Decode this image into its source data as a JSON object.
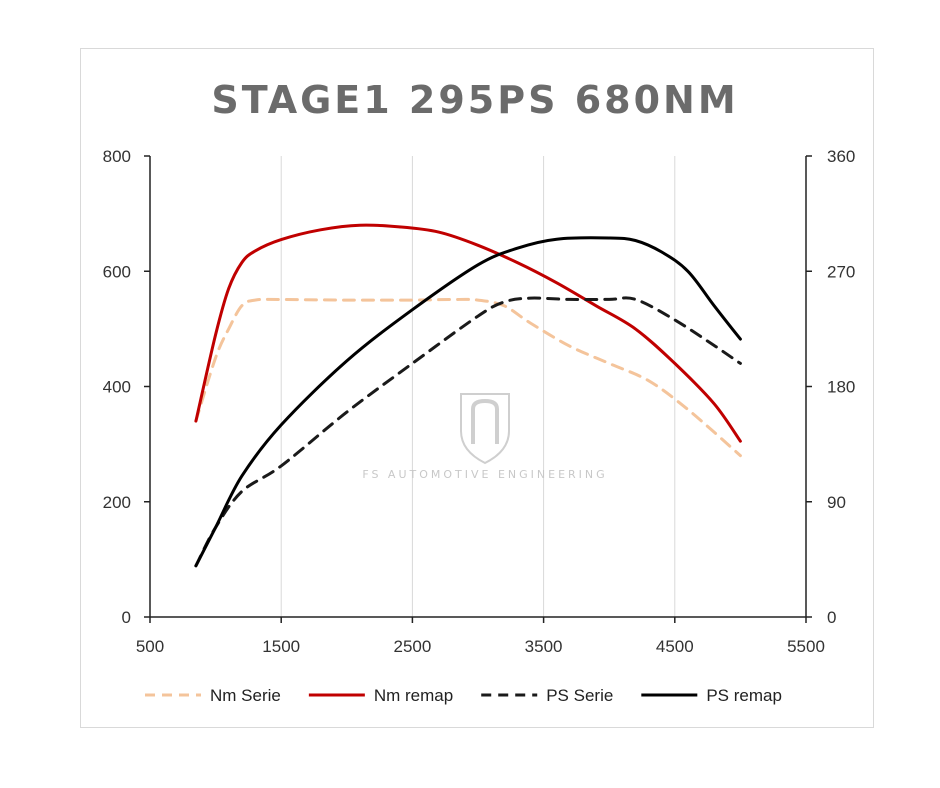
{
  "watermark": {
    "text": "FS AUTOMOTIVE ENGINEERING"
  },
  "chart_data": {
    "type": "line",
    "title": "STAGE1  295PS  680NM",
    "xlabel": "",
    "ylabel": "",
    "xlim": [
      500,
      5500
    ],
    "ylim_left": [
      0,
      800
    ],
    "ylim_right": [
      0,
      360
    ],
    "x_ticks": [
      "500",
      "1500",
      "2500",
      "3500",
      "4500",
      "5500"
    ],
    "y_left_ticks": [
      "0",
      "200",
      "400",
      "600",
      "800"
    ],
    "y_right_ticks": [
      "0",
      "90",
      "180",
      "270",
      "360"
    ],
    "grid": "vertical",
    "legend_position": "bottom",
    "series": [
      {
        "name": "Nm Serie",
        "axis": "left",
        "color": "#f4c49b",
        "dash": "dashed",
        "points": [
          [
            850,
            340
          ],
          [
            1000,
            450
          ],
          [
            1100,
            500
          ],
          [
            1200,
            540
          ],
          [
            1300,
            550
          ],
          [
            1500,
            551
          ],
          [
            2000,
            550
          ],
          [
            2500,
            550
          ],
          [
            2800,
            551
          ],
          [
            3000,
            550
          ],
          [
            3200,
            540
          ],
          [
            3400,
            510
          ],
          [
            3700,
            470
          ],
          [
            4000,
            440
          ],
          [
            4300,
            410
          ],
          [
            4600,
            360
          ],
          [
            5000,
            280
          ]
        ]
      },
      {
        "name": "Nm remap",
        "axis": "left",
        "color": "#c00000",
        "dash": "solid",
        "points": [
          [
            850,
            340
          ],
          [
            1000,
            490
          ],
          [
            1100,
            570
          ],
          [
            1200,
            615
          ],
          [
            1300,
            635
          ],
          [
            1500,
            655
          ],
          [
            1800,
            672
          ],
          [
            2100,
            680
          ],
          [
            2400,
            677
          ],
          [
            2700,
            668
          ],
          [
            3000,
            645
          ],
          [
            3300,
            615
          ],
          [
            3600,
            580
          ],
          [
            3900,
            540
          ],
          [
            4200,
            500
          ],
          [
            4500,
            440
          ],
          [
            4800,
            370
          ],
          [
            5000,
            305
          ]
        ]
      },
      {
        "name": "PS Serie",
        "axis": "right",
        "color": "#1a1a1a",
        "dash": "dashed",
        "points": [
          [
            850,
            40
          ],
          [
            1000,
            70
          ],
          [
            1200,
            98
          ],
          [
            1500,
            118
          ],
          [
            2000,
            160
          ],
          [
            2500,
            198
          ],
          [
            3000,
            235
          ],
          [
            3200,
            246
          ],
          [
            3400,
            249
          ],
          [
            3700,
            248
          ],
          [
            4000,
            248
          ],
          [
            4200,
            248
          ],
          [
            4500,
            232
          ],
          [
            4800,
            212
          ],
          [
            5000,
            198
          ]
        ]
      },
      {
        "name": "PS remap",
        "axis": "right",
        "color": "#000000",
        "dash": "solid",
        "points": [
          [
            850,
            40
          ],
          [
            1000,
            70
          ],
          [
            1200,
            110
          ],
          [
            1500,
            150
          ],
          [
            2000,
            200
          ],
          [
            2500,
            240
          ],
          [
            3000,
            275
          ],
          [
            3300,
            288
          ],
          [
            3600,
            295
          ],
          [
            4000,
            296
          ],
          [
            4200,
            294
          ],
          [
            4400,
            285
          ],
          [
            4600,
            270
          ],
          [
            4800,
            243
          ],
          [
            5000,
            217
          ]
        ]
      }
    ]
  }
}
